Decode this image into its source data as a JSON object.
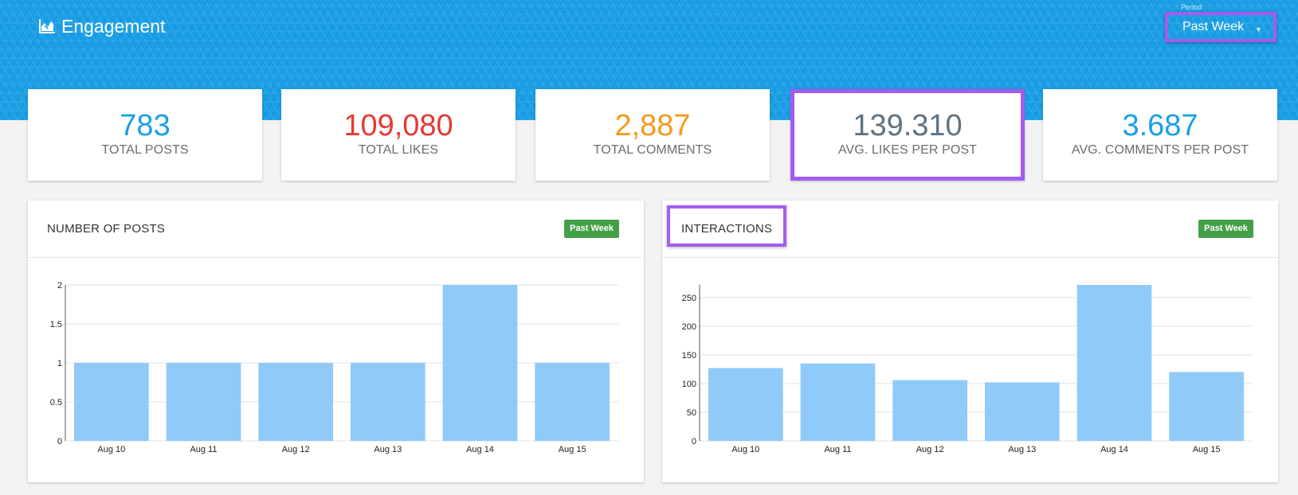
{
  "header": {
    "title": "Engagement",
    "title_icon": "area-chart-icon",
    "period": {
      "label": "Period",
      "value": "Past Week"
    }
  },
  "stats": [
    {
      "value": "783",
      "label": "TOTAL POSTS",
      "color": "#1a9fe6"
    },
    {
      "value": "109,080",
      "label": "TOTAL LIKES",
      "color": "#e53935"
    },
    {
      "value": "2,887",
      "label": "TOTAL COMMENTS",
      "color": "#f59a1b"
    },
    {
      "value": "139.310",
      "label": "AVG. LIKES PER POST",
      "color": "#5f7382"
    },
    {
      "value": "3.687",
      "label": "AVG. COMMENTS PER POST",
      "color": "#1a9fe6"
    }
  ],
  "panels": [
    {
      "title": "NUMBER OF POSTS",
      "badge": "Past Week"
    },
    {
      "title": "INTERACTIONS",
      "badge": "Past Week"
    }
  ],
  "colors": {
    "accent": "#1a9fe6",
    "highlight": "#a45cf0",
    "bar": "#90caf9",
    "badge": "#44a047"
  },
  "chart_data": [
    {
      "type": "bar",
      "title": "NUMBER OF POSTS",
      "categories": [
        "Aug 10",
        "Aug 11",
        "Aug 12",
        "Aug 13",
        "Aug 14",
        "Aug 15"
      ],
      "values": [
        1,
        1,
        1,
        1,
        2,
        1
      ],
      "ylim": [
        0,
        2
      ],
      "yticks": [
        0,
        0.5,
        1,
        1.5,
        2
      ],
      "ytick_labels": [
        "0",
        "0.5",
        "1",
        "1.5",
        "2"
      ],
      "xlabel": "",
      "ylabel": "",
      "grid": true
    },
    {
      "type": "bar",
      "title": "INTERACTIONS",
      "categories": [
        "Aug 10",
        "Aug 11",
        "Aug 12",
        "Aug 13",
        "Aug 14",
        "Aug 15"
      ],
      "values": [
        127,
        135,
        106,
        102,
        272,
        120
      ],
      "ylim": [
        0,
        272
      ],
      "yticks": [
        0,
        50,
        100,
        150,
        200,
        250
      ],
      "ytick_labels": [
        "0",
        "50",
        "100",
        "150",
        "200",
        "250"
      ],
      "xlabel": "",
      "ylabel": "",
      "grid": true
    }
  ]
}
